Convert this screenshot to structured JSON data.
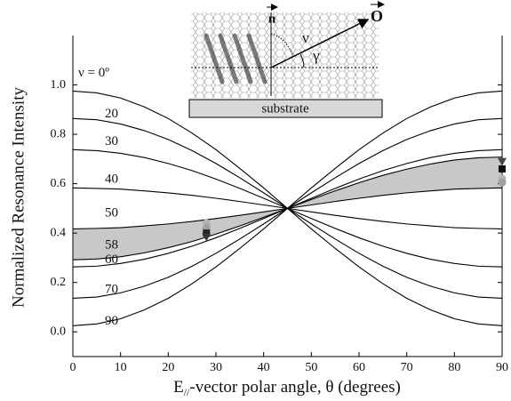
{
  "chart_data": {
    "type": "line",
    "ylabel": "Normalized Resonance Intensity",
    "xlabel": {
      "main": "E",
      "sub": "//",
      "rest": "-vector polar angle, θ (degrees)"
    },
    "x": [
      0,
      5,
      10,
      15,
      20,
      25,
      30,
      35,
      40,
      45,
      50,
      55,
      60,
      65,
      70,
      75,
      80,
      85,
      90
    ],
    "xlim": [
      0,
      90
    ],
    "xticks": [
      0,
      10,
      20,
      30,
      40,
      50,
      60,
      70,
      80,
      90
    ],
    "ylim": [
      -0.1,
      1.2
    ],
    "yticks": [
      {
        "value": 0,
        "label": "0.0"
      },
      {
        "value": 0.2,
        "label": "0.2"
      },
      {
        "value": 0.4,
        "label": "0.4"
      },
      {
        "value": 0.6,
        "label": "0.6"
      },
      {
        "value": 0.8,
        "label": "0.8"
      },
      {
        "value": 1,
        "label": "1.0"
      }
    ],
    "color": "#000000",
    "fill_between": [
      4,
      5
    ],
    "fill_color": "#c8c8c8",
    "series": [
      {
        "name": "ν = 0º",
        "values": [
          0.975,
          0.968,
          0.947,
          0.911,
          0.864,
          0.805,
          0.738,
          0.662,
          0.583,
          0.5,
          0.417,
          0.338,
          0.263,
          0.195,
          0.136,
          0.089,
          0.053,
          0.032,
          0.025
        ]
      },
      {
        "name": "20",
        "values": [
          0.864,
          0.859,
          0.842,
          0.815,
          0.779,
          0.734,
          0.682,
          0.624,
          0.563,
          0.5,
          0.437,
          0.376,
          0.318,
          0.266,
          0.221,
          0.185,
          0.158,
          0.141,
          0.136
        ]
      },
      {
        "name": "30",
        "values": [
          0.738,
          0.734,
          0.723,
          0.706,
          0.682,
          0.653,
          0.619,
          0.581,
          0.541,
          0.5,
          0.459,
          0.419,
          0.381,
          0.347,
          0.318,
          0.294,
          0.277,
          0.266,
          0.263
        ]
      },
      {
        "name": "40",
        "values": [
          0.583,
          0.581,
          0.578,
          0.571,
          0.563,
          0.553,
          0.541,
          0.528,
          0.514,
          0.5,
          0.486,
          0.472,
          0.459,
          0.447,
          0.437,
          0.429,
          0.422,
          0.419,
          0.417
        ]
      },
      {
        "name": "50",
        "values": [
          0.417,
          0.419,
          0.422,
          0.429,
          0.437,
          0.447,
          0.459,
          0.472,
          0.486,
          0.5,
          0.514,
          0.528,
          0.541,
          0.553,
          0.563,
          0.571,
          0.578,
          0.581,
          0.583
        ]
      },
      {
        "name": "58",
        "values": [
          0.292,
          0.295,
          0.304,
          0.32,
          0.341,
          0.366,
          0.396,
          0.429,
          0.464,
          0.5,
          0.536,
          0.571,
          0.604,
          0.634,
          0.659,
          0.68,
          0.696,
          0.705,
          0.708
        ]
      },
      {
        "name": "60",
        "values": [
          0.263,
          0.266,
          0.277,
          0.294,
          0.318,
          0.347,
          0.381,
          0.419,
          0.459,
          0.5,
          0.541,
          0.581,
          0.619,
          0.653,
          0.682,
          0.706,
          0.723,
          0.734,
          0.738
        ]
      },
      {
        "name": "70",
        "values": [
          0.136,
          0.141,
          0.158,
          0.185,
          0.221,
          0.266,
          0.318,
          0.376,
          0.437,
          0.5,
          0.563,
          0.624,
          0.682,
          0.734,
          0.779,
          0.815,
          0.842,
          0.859,
          0.864
        ]
      },
      {
        "name": "90",
        "values": [
          0.025,
          0.032,
          0.053,
          0.089,
          0.136,
          0.195,
          0.263,
          0.338,
          0.417,
          0.5,
          0.583,
          0.662,
          0.738,
          0.805,
          0.864,
          0.911,
          0.947,
          0.968,
          0.975
        ]
      }
    ],
    "points": [
      {
        "x": 28,
        "y": 0.44,
        "shape": "circle",
        "color": "#b4b4b4"
      },
      {
        "x": 28,
        "y": 0.42,
        "shape": "circle",
        "color": "#a0a0a0"
      },
      {
        "x": 28,
        "y": 0.4,
        "shape": "square",
        "color": "#222222"
      },
      {
        "x": 28,
        "y": 0.385,
        "shape": "triangle-down",
        "color": "#333333"
      },
      {
        "x": 90,
        "y": 0.69,
        "shape": "triangle-down",
        "color": "#444444"
      },
      {
        "x": 90,
        "y": 0.66,
        "shape": "square",
        "color": "#111111"
      },
      {
        "x": 90,
        "y": 0.62,
        "shape": "circle",
        "color": "#b4b4b4"
      },
      {
        "x": 90,
        "y": 0.605,
        "shape": "circle",
        "color": "#a0a0a0"
      }
    ],
    "inset": {
      "normal": "n",
      "orientation": "O",
      "nu": "ν",
      "gamma": "γ",
      "substrate": "substrate"
    }
  }
}
